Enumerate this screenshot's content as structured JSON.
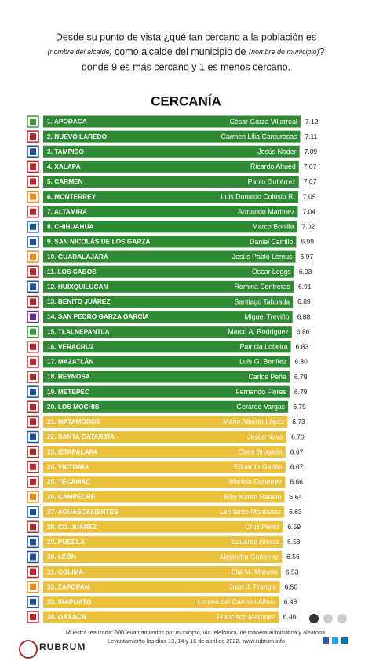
{
  "chart_data": {
    "type": "bar",
    "question": {
      "line1": "Desde su punto de vista ¿qué tan cercano a la población es",
      "line2_a": "(nombre del alcalde)",
      "line2_b": " como alcalde del municipio de ",
      "line2_c": "(nombre de municipio)",
      "line2_d": "?",
      "line3": "donde 9 es más cercano y 1 es menos cercano."
    },
    "title": "CERCANÍA",
    "categories": [
      "1. APODACA",
      "2. NUEVO LAREDO",
      "3. TAMPICO",
      "4. XALAPA",
      "5. CARMEN",
      "6. MONTERREY",
      "7. ALTAMIRA",
      "8. CHIHUAHUA",
      "9. SAN NICOLÁS DE LOS GARZA",
      "10. GUADALAJARA",
      "11. LOS CABOS",
      "12. HUIXQUILUCAN",
      "13. BENITO JUÁREZ",
      "14. SAN PEDRO GARZA GARCÍA",
      "15. TLALNEPANTLA",
      "16. VERACRUZ",
      "17. MAZATLÁN",
      "18. REYNOSA",
      "19. METEPEC",
      "20. LOS MOCHIS",
      "21. MATAMOROS",
      "22. SANTA CATARINA",
      "23. IZTAPALAPA",
      "24. VICTORIA",
      "25. TECÁMAC",
      "26. CAMPECHE",
      "27. AGUASCALIENTES",
      "28. CD. JUÁREZ",
      "29. PUEBLA",
      "30. LEÓN",
      "31. COLIMA",
      "32. ZAPOPAN",
      "33. IRAPUATO",
      "34. OAXACA"
    ],
    "names": [
      "César Garza Villarreal",
      "Carmen Lilia Canturosas",
      "Jesús Nader",
      "Ricardo Ahued",
      "Pablo Gutiérrez",
      "Luis Donaldo Colosio R.",
      "Armando Martínez",
      "Marco Bonilla",
      "Daniel Carrillo",
      "Jesús Pablo Lemus",
      "Oscar Leggs",
      "Romina Contreras",
      "Santiago Taboada",
      "Miguel Treviño",
      "Marco A. Rodríguez",
      "Patricia Lobeira",
      "Luis G. Benítez",
      "Carlos Peña",
      "Fernando Flores",
      "Gerardo Vargas",
      "Mario Alberto López",
      "Jesús Nava",
      "Clara Brugada",
      "Eduardo Gattás",
      "Mariela Gutiérrez",
      "Biby Karen Rabelo",
      "Leonardo Montañez",
      "Cruz Pérez",
      "Eduardo Rivera",
      "Alejandra Gutiérrez",
      "Elia M. Moreno",
      "Juan J. Frangie",
      "Lorena del Carmen Alfaro",
      "Francisco Martínez"
    ],
    "values": [
      7.12,
      7.11,
      7.09,
      7.07,
      7.07,
      7.05,
      7.04,
      7.02,
      6.99,
      6.97,
      6.93,
      6.91,
      6.89,
      6.88,
      6.86,
      6.83,
      6.8,
      6.79,
      6.79,
      6.75,
      6.73,
      6.7,
      6.67,
      6.67,
      6.66,
      6.64,
      6.63,
      6.59,
      6.58,
      6.56,
      6.53,
      6.5,
      6.48,
      6.46
    ],
    "value_labels": [
      "7.12",
      "7.11",
      "7.09",
      "7.07",
      "7.07",
      "7.05",
      "7.04",
      "7.02",
      "6.99",
      "6.97",
      "6.93",
      "6.91",
      "6.89",
      "6.88",
      "6.86",
      "6.83",
      "6.80",
      "6.79",
      "6.79",
      "6.75",
      "6.73",
      "6.70",
      "6.67",
      "6.67",
      "6.66",
      "6.64",
      "6.63",
      "6.59",
      "6.58",
      "6.56",
      "6.53",
      "6.50",
      "6.48",
      "6.46"
    ],
    "bar_colors": [
      "#2f8a34",
      "#2f8a34",
      "#2f8a34",
      "#2f8a34",
      "#2f8a34",
      "#2f8a34",
      "#2f8a34",
      "#2f8a34",
      "#2f8a34",
      "#2f8a34",
      "#2f8a34",
      "#2f8a34",
      "#2f8a34",
      "#2f8a34",
      "#2f8a34",
      "#2f8a34",
      "#2f8a34",
      "#2f8a34",
      "#2f8a34",
      "#2f8a34",
      "#ebc03a",
      "#ebc03a",
      "#ebc03a",
      "#ebc03a",
      "#ebc03a",
      "#ebc03a",
      "#ebc03a",
      "#ebc03a",
      "#ebc03a",
      "#ebc03a",
      "#ebc03a",
      "#ebc03a",
      "#ebc03a",
      "#ebc03a"
    ],
    "logo_colors": [
      "#3a9a3a",
      "#b5272d",
      "#1d4f9c",
      "#b5272d",
      "#b5272d",
      "#f08a1c",
      "#b5272d",
      "#1d4f9c",
      "#1d4f9c",
      "#f08a1c",
      "#b5272d",
      "#1d4f9c",
      "#b5272d",
      "#6a2c8a",
      "#3a9a3a",
      "#b5272d",
      "#b5272d",
      "#b5272d",
      "#1d4f9c",
      "#b5272d",
      "#b5272d",
      "#1d4f9c",
      "#b5272d",
      "#b5272d",
      "#b5272d",
      "#f08a1c",
      "#1d4f9c",
      "#b5272d",
      "#1d4f9c",
      "#1d4f9c",
      "#b5272d",
      "#f08a1c",
      "#1d4f9c",
      "#b5272d"
    ],
    "footer": {
      "brand": "RUBRUM",
      "note1": "Muestra realizada: 600 levantamientos por municipio, vía telefónica, de manera automática y aleatoria.",
      "note2": "Levantamiento los días 13, 14 y 16 de abril de 2022. www.rubrum.info"
    }
  }
}
